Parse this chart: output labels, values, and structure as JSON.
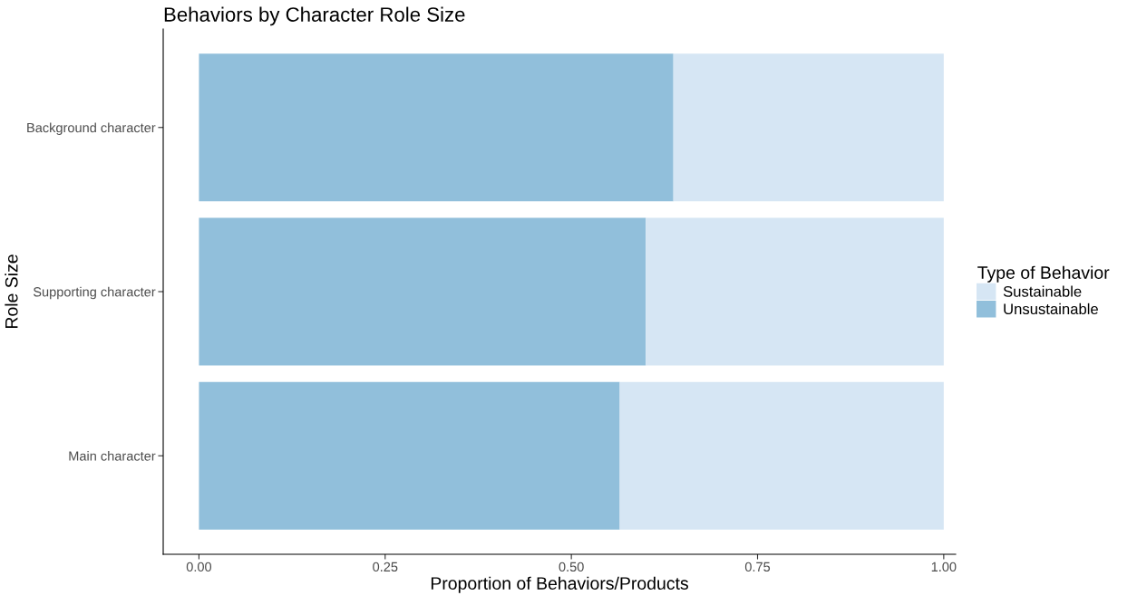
{
  "chart_data": {
    "type": "bar",
    "orientation": "horizontal",
    "stacked": true,
    "title": "Behaviors by Character Role Size",
    "xlabel": "Proportion of Behaviors/Products",
    "ylabel": "Role Size",
    "legend_title": "Type of Behavior",
    "legend": "right",
    "categories": [
      "Background character",
      "Supporting character",
      "Main character"
    ],
    "series": [
      {
        "name": "Unsustainable",
        "color": "#91bfdb",
        "values": [
          0.637,
          0.6,
          0.565
        ]
      },
      {
        "name": "Sustainable",
        "color": "#d6e6f4",
        "values": [
          0.363,
          0.4,
          0.435
        ]
      }
    ],
    "xlim": [
      -0.048,
      1.016
    ],
    "xticks": [
      {
        "value": 0,
        "label": "0.00"
      },
      {
        "value": 0.25,
        "label": "0.25"
      },
      {
        "value": 0.5,
        "label": "0.50"
      },
      {
        "value": 0.75,
        "label": "0.75"
      },
      {
        "value": 1,
        "label": "1.00"
      }
    ],
    "grid": false
  }
}
